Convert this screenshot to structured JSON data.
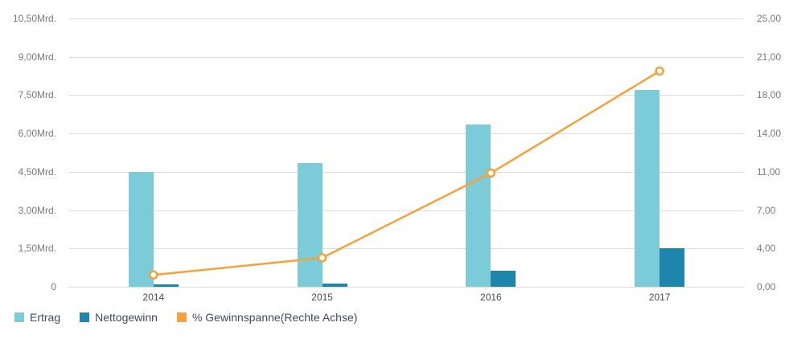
{
  "chart_data": {
    "type": "combo-bar-line",
    "categories": [
      "2014",
      "2015",
      "2016",
      "2017"
    ],
    "series": [
      {
        "name": "Ertrag",
        "type": "bar",
        "axis": "left",
        "color": "#7ccbd9",
        "values": [
          4.5,
          4.85,
          6.35,
          7.7
        ]
      },
      {
        "name": "Nettogewinn",
        "type": "bar",
        "axis": "left",
        "color": "#1e86ad",
        "values": [
          0.08,
          0.12,
          0.62,
          1.5
        ]
      },
      {
        "name": "% Gewinnspanne(Rechte Achse)",
        "type": "line",
        "axis": "right",
        "color": "#f5a23c",
        "values": [
          1.1,
          2.7,
          10.6,
          20.1
        ]
      }
    ],
    "left_axis": {
      "ticks": [
        "0",
        "1,50Mrd.",
        "3,00Mrd.",
        "4,50Mrd.",
        "6,00Mrd.",
        "7,50Mrd.",
        "9,00Mrd.",
        "10,50Mrd."
      ],
      "min": 0,
      "max": 10.5
    },
    "right_axis": {
      "ticks": [
        "0,00",
        "4,00",
        "7,00",
        "11,00",
        "14,00",
        "18,00",
        "21,00",
        "25,00"
      ],
      "min": 0,
      "max": 25
    },
    "grid": true,
    "legend_position": "bottom-left",
    "gridline_color": "#dcdcdc",
    "marker_fill": "#ffffff"
  }
}
